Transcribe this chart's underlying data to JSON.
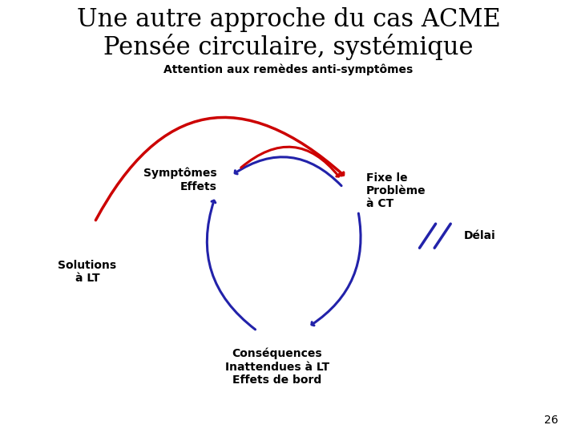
{
  "title_line1": "Une autre approche du cas ACME",
  "title_line2": "Pensée circulaire, systémique",
  "subtitle": "Attention aux remèdes anti-symptômes",
  "labels": {
    "symptomes": "Symptômes\nEffets",
    "fixe": "Fixe le\nProblème\nà CT",
    "solutions": "Solutions\nà LT",
    "consequences": "Conséquences\nInattendues à LT\nEffets de bord",
    "delai": "Délai"
  },
  "page_number": "26",
  "blue_color": "#2222AA",
  "red_color": "#CC0000",
  "bg_color": "#FFFFFF",
  "title_fontsize": 22,
  "subtitle_fontsize": 10,
  "label_fontsize": 10
}
